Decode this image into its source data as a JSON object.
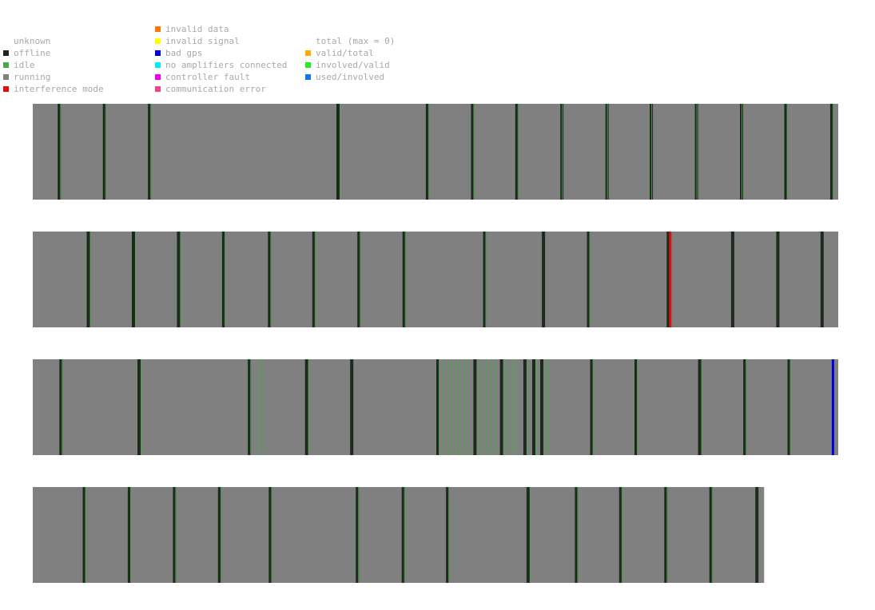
{
  "legend": {
    "state": [
      {
        "label": "unknown",
        "color": null
      },
      {
        "label": "offline",
        "color": "#222222"
      },
      {
        "label": "idle",
        "color": "#4aa84a"
      },
      {
        "label": "running",
        "color": "#808080"
      },
      {
        "label": "interference mode",
        "color": "#dd1111"
      }
    ],
    "faults": [
      {
        "label": "invalid data",
        "color": "#ff7700"
      },
      {
        "label": "invalid signal",
        "color": "#ffff00"
      },
      {
        "label": "bad gps",
        "color": "#0000dd"
      },
      {
        "label": "no amplifiers connected",
        "color": "#00eeee"
      },
      {
        "label": "controller fault",
        "color": "#ee00ee"
      },
      {
        "label": "communication error",
        "color": "#ee4488"
      }
    ],
    "ratios": [
      {
        "label": "total (max = 0)",
        "color": null
      },
      {
        "label": "valid/total",
        "color": "#ffaa00"
      },
      {
        "label": "involved/valid",
        "color": "#22ee22"
      },
      {
        "label": "used/involved",
        "color": "#1177ee"
      }
    ]
  },
  "chart_data": {
    "type": "heatmap",
    "description_units": "fraction of each strip's time span (0 = start, 1 = end)",
    "running_color": "#808080",
    "rows": [
      {
        "coverage": 1.0,
        "offline_marks": [
          0.031,
          0.087,
          0.143,
          0.377,
          0.488,
          0.544,
          0.599,
          0.655,
          0.711,
          0.766,
          0.822,
          0.878,
          0.933,
          0.99
        ],
        "idle_marks": [
          0.034,
          0.09,
          0.146,
          0.381,
          0.491,
          0.547,
          0.602,
          0.657,
          0.713,
          0.768,
          0.824,
          0.88,
          0.936,
          0.993
        ],
        "other_marks": []
      },
      {
        "coverage": 1.0,
        "offline_marks": [
          0.067,
          0.123,
          0.179,
          0.235,
          0.292,
          0.347,
          0.403,
          0.459,
          0.559,
          0.632,
          0.688,
          0.787,
          0.867,
          0.923,
          0.978
        ],
        "idle_marks": [
          0.071,
          0.127,
          0.183,
          0.238,
          0.295,
          0.35,
          0.406,
          0.462,
          0.562,
          0.691
        ],
        "other_marks": [
          {
            "pos": 0.79,
            "state": "interference mode"
          }
        ]
      },
      {
        "coverage": 1.0,
        "offline_marks": [
          0.033,
          0.13,
          0.267,
          0.338,
          0.394,
          0.501,
          0.547,
          0.58,
          0.609,
          0.62,
          0.63,
          0.692,
          0.747,
          0.826,
          0.882,
          0.937
        ],
        "idle_marks": [
          0.036,
          0.134,
          0.27,
          0.28,
          0.286,
          0.342,
          0.504,
          0.51,
          0.515,
          0.52,
          0.525,
          0.53,
          0.535,
          0.541,
          0.553,
          0.558,
          0.563,
          0.569,
          0.574,
          0.585,
          0.59,
          0.595,
          0.6,
          0.614,
          0.625,
          0.635,
          0.64,
          0.695,
          0.75,
          0.83,
          0.885,
          0.94
        ],
        "other_marks": [
          {
            "pos": 0.992,
            "state": "bad gps"
          }
        ]
      },
      {
        "coverage": 0.908,
        "offline_marks": [
          0.062,
          0.118,
          0.174,
          0.23,
          0.293,
          0.401,
          0.458,
          0.513,
          0.613,
          0.673,
          0.728,
          0.784,
          0.84,
          0.897
        ],
        "idle_marks": [
          0.065,
          0.121,
          0.177,
          0.233,
          0.296,
          0.404,
          0.461,
          0.516,
          0.617,
          0.676,
          0.731,
          0.787,
          0.843
        ],
        "other_marks": []
      }
    ]
  }
}
